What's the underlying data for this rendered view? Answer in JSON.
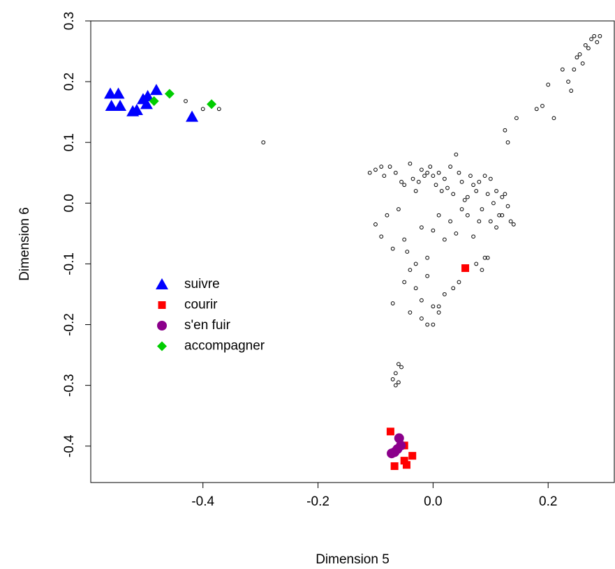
{
  "chart_data": {
    "type": "scatter",
    "x_label": "Dimension 5",
    "y_label": "Dimension 6",
    "xlim": [
      -0.595,
      0.315
    ],
    "ylim": [
      -0.46,
      0.3
    ],
    "xticks": [
      -0.4,
      -0.2,
      {
        "value": 0,
        "label": "0.0"
      },
      0.2
    ],
    "yticks": [
      -0.4,
      -0.3,
      -0.2,
      -0.1,
      {
        "value": 0,
        "label": "0.0"
      },
      0.1,
      0.2,
      0.3
    ],
    "legend": "center-left",
    "series": [
      {
        "color": "#000000",
        "marker": "open-circle",
        "x": [
          -0.43,
          -0.4,
          -0.372,
          -0.295,
          -0.11,
          -0.1,
          -0.09,
          -0.085,
          -0.075,
          -0.065,
          -0.055,
          -0.05,
          -0.04,
          -0.035,
          -0.03,
          -0.025,
          -0.02,
          -0.015,
          -0.01,
          -0.005,
          0.0,
          0.005,
          0.01,
          0.015,
          0.02,
          0.025,
          0.03,
          0.035,
          0.04,
          0.045,
          0.05,
          0.055,
          0.06,
          0.065,
          0.07,
          0.075,
          0.08,
          0.085,
          0.09,
          0.095,
          0.1,
          0.105,
          0.11,
          0.115,
          0.12,
          0.125,
          0.13,
          0.135,
          0.14,
          -0.1,
          -0.09,
          -0.08,
          -0.07,
          -0.06,
          -0.05,
          -0.045,
          -0.03,
          -0.02,
          -0.01,
          0.0,
          0.01,
          0.02,
          0.03,
          0.04,
          0.05,
          0.06,
          0.07,
          0.08,
          0.09,
          0.1,
          0.11,
          0.12,
          -0.05,
          -0.04,
          -0.03,
          -0.02,
          -0.01,
          0.0,
          0.01,
          0.02,
          0.035,
          0.045,
          0.075,
          0.085,
          0.095,
          -0.07,
          -0.04,
          -0.02,
          -0.01,
          0.0,
          0.01,
          -0.07,
          -0.065,
          -0.06,
          -0.055,
          -0.06,
          -0.065,
          0.125,
          0.13,
          0.145,
          0.18,
          0.19,
          0.2,
          0.21,
          0.225,
          0.235,
          0.24,
          0.245,
          0.25,
          0.255,
          0.26,
          0.265,
          0.27,
          0.275,
          0.28,
          0.285,
          0.29
        ],
        "y": [
          0.168,
          0.155,
          0.155,
          0.1,
          0.05,
          0.055,
          0.06,
          0.045,
          0.06,
          0.05,
          0.035,
          0.03,
          0.065,
          0.04,
          0.02,
          0.035,
          0.055,
          0.045,
          0.05,
          0.06,
          0.045,
          0.03,
          0.05,
          0.02,
          0.04,
          0.025,
          0.06,
          0.015,
          0.08,
          0.05,
          0.035,
          0.005,
          0.01,
          0.045,
          0.03,
          0.02,
          0.035,
          -0.01,
          0.045,
          0.015,
          0.04,
          0.0,
          0.02,
          -0.02,
          0.01,
          0.015,
          -0.005,
          -0.03,
          -0.035,
          -0.035,
          -0.055,
          -0.02,
          -0.075,
          -0.01,
          -0.06,
          -0.08,
          -0.1,
          -0.04,
          -0.09,
          -0.045,
          -0.02,
          -0.06,
          -0.03,
          -0.05,
          -0.01,
          -0.02,
          -0.055,
          -0.03,
          -0.09,
          -0.03,
          -0.04,
          -0.02,
          -0.13,
          -0.11,
          -0.14,
          -0.16,
          -0.12,
          -0.17,
          -0.18,
          -0.15,
          -0.14,
          -0.13,
          -0.1,
          -0.11,
          -0.09,
          -0.165,
          -0.18,
          -0.19,
          -0.2,
          -0.2,
          -0.17,
          -0.29,
          -0.28,
          -0.265,
          -0.27,
          -0.295,
          -0.3,
          0.12,
          0.1,
          0.14,
          0.155,
          0.16,
          0.195,
          0.14,
          0.22,
          0.2,
          0.185,
          0.22,
          0.24,
          0.245,
          0.23,
          0.26,
          0.255,
          0.27,
          0.275,
          0.265,
          0.275
        ]
      },
      {
        "name": "suivre",
        "color": "#0000ff",
        "marker": "triangle",
        "x": [
          -0.561,
          -0.547,
          -0.559,
          -0.544,
          -0.522,
          -0.515,
          -0.504,
          -0.496,
          -0.481,
          -0.498,
          -0.419
        ],
        "y": [
          0.18,
          0.18,
          0.16,
          0.16,
          0.151,
          0.153,
          0.171,
          0.176,
          0.186,
          0.163,
          0.142
        ]
      },
      {
        "name": "courir",
        "color": "#ff0000",
        "marker": "square",
        "x": [
          0.056,
          -0.074,
          -0.067,
          -0.05,
          -0.05,
          -0.046,
          -0.036
        ],
        "y": [
          -0.107,
          -0.376,
          -0.433,
          -0.399,
          -0.424,
          -0.431,
          -0.416
        ]
      },
      {
        "name": "s'en fuir",
        "color": "#8b008b",
        "marker": "circle",
        "x": [
          -0.059,
          -0.067,
          -0.072,
          -0.056,
          -0.062
        ],
        "y": [
          -0.387,
          -0.41,
          -0.412,
          -0.399,
          -0.405
        ]
      },
      {
        "name": "accompagner",
        "color": "#00cd00",
        "marker": "diamond",
        "x": [
          -0.485,
          -0.458,
          -0.385
        ],
        "y": [
          0.168,
          0.18,
          0.163
        ]
      }
    ]
  }
}
